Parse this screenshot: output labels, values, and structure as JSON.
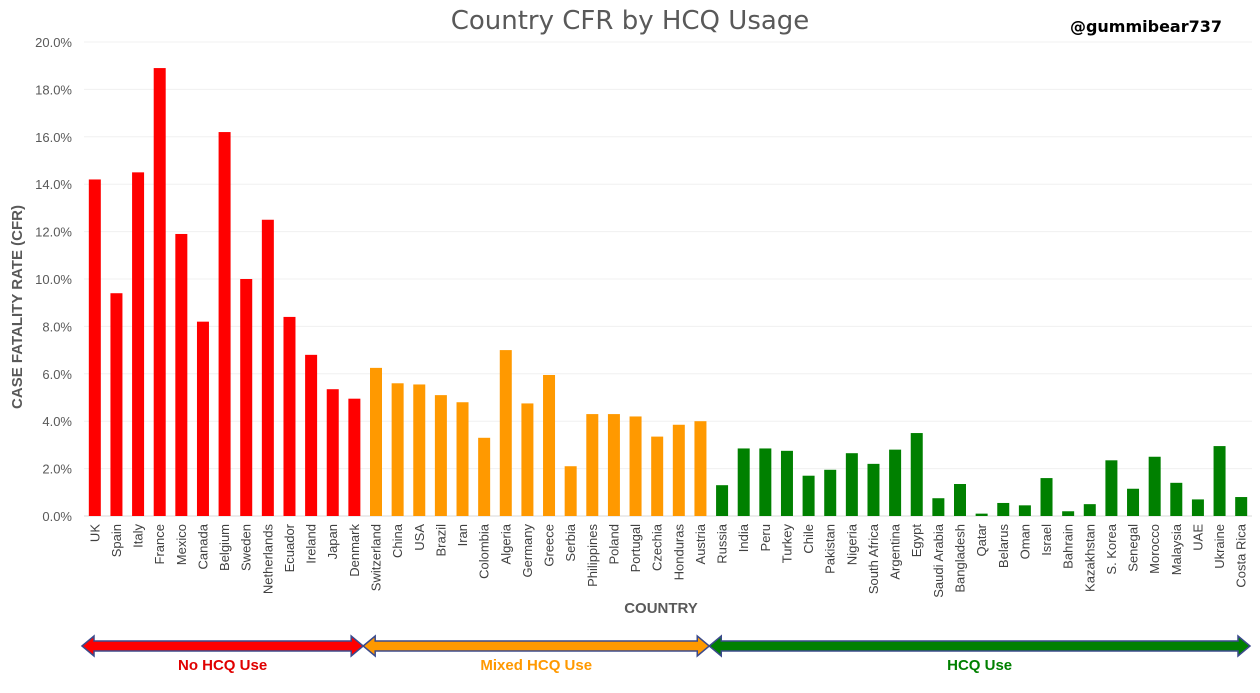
{
  "chart_data": {
    "type": "bar",
    "title": "Country CFR by HCQ Usage",
    "handle": "@gummibear737",
    "xlabel": "COUNTRY",
    "ylabel": "CASE FATALITY RATE (CFR)",
    "ylim": [
      0,
      20
    ],
    "yticks": [
      "0.0%",
      "2.0%",
      "4.0%",
      "6.0%",
      "8.0%",
      "10.0%",
      "12.0%",
      "14.0%",
      "16.0%",
      "18.0%",
      "20.0%"
    ],
    "grid": true,
    "categories": [
      "UK",
      "Spain",
      "Italy",
      "France",
      "Mexico",
      "Canada",
      "Belgium",
      "Sweden",
      "Netherlands",
      "Ecuador",
      "Ireland",
      "Japan",
      "Denmark",
      "Switzerland",
      "China",
      "USA",
      "Brazil",
      "Iran",
      "Colombia",
      "Algeria",
      "Germany",
      "Greece",
      "Serbia",
      "Philippines",
      "Poland",
      "Portugal",
      "Czechia",
      "Honduras",
      "Austria",
      "Russia",
      "India",
      "Peru",
      "Turkey",
      "Chile",
      "Pakistan",
      "Nigeria",
      "South Africa",
      "Argentina",
      "Egypt",
      "Saudi Arabia",
      "Bangladesh",
      "Qatar",
      "Belarus",
      "Oman",
      "Israel",
      "Bahrain",
      "Kazakhstan",
      "S. Korea",
      "Senegal",
      "Morocco",
      "Malaysia",
      "UAE",
      "Ukraine",
      "Costa Rica"
    ],
    "values": [
      14.2,
      9.4,
      14.5,
      18.9,
      11.9,
      8.2,
      16.2,
      10.0,
      12.5,
      8.4,
      6.8,
      5.35,
      4.95,
      6.25,
      5.6,
      5.55,
      5.1,
      4.8,
      3.3,
      7.0,
      4.75,
      5.95,
      2.1,
      4.3,
      4.3,
      4.2,
      3.35,
      3.85,
      4.0,
      1.3,
      2.85,
      2.85,
      2.75,
      1.7,
      1.95,
      2.65,
      2.2,
      2.8,
      3.5,
      0.75,
      1.35,
      0.1,
      0.55,
      0.45,
      1.6,
      0.2,
      0.5,
      2.35,
      1.15,
      2.5,
      1.4,
      0.7,
      2.95,
      0.8
    ],
    "groups": [
      {
        "name": "No HCQ Use",
        "start": 0,
        "end": 12,
        "color": "#ff0000",
        "label_color": "#e00000"
      },
      {
        "name": "Mixed HCQ Use",
        "start": 13,
        "end": 28,
        "color": "#ff9900",
        "label_color": "#ff9900"
      },
      {
        "name": "HCQ Use",
        "start": 29,
        "end": 53,
        "color": "#008000",
        "label_color": "#008000"
      }
    ]
  }
}
